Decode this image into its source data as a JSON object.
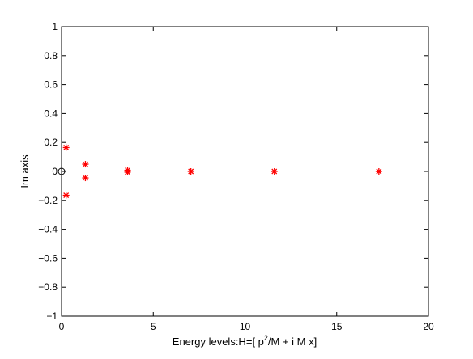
{
  "chart_data": {
    "type": "scatter",
    "title": "",
    "xlabel_parts": [
      "Energy levels:H=[ p",
      "2",
      "/M + i M x]"
    ],
    "ylabel": "Im axis",
    "xlim": [
      0,
      20
    ],
    "ylim": [
      -1,
      1
    ],
    "xticks": [
      0,
      5,
      10,
      15,
      20
    ],
    "xtick_labels": [
      "0",
      "5",
      "10",
      "15",
      "20"
    ],
    "yticks": [
      1,
      0.8,
      0.6,
      0.4,
      0.2,
      0,
      -0.2,
      -0.4,
      -0.6,
      -0.8,
      -1
    ],
    "ytick_labels": [
      "1",
      "0.8",
      "0.6",
      "0.4",
      "0.2",
      "0",
      "−0.2",
      "−0.4",
      "−0.6",
      "−0.8",
      "−1"
    ],
    "grid": false,
    "series": [
      {
        "marker": "asterisk",
        "color": "#ff0000",
        "points": [
          {
            "x": 0.25,
            "y": 0.165
          },
          {
            "x": 0.25,
            "y": -0.165
          },
          {
            "x": 1.3,
            "y": 0.05
          },
          {
            "x": 1.3,
            "y": -0.045
          },
          {
            "x": 3.6,
            "y": 0.008
          },
          {
            "x": 3.6,
            "y": -0.005
          },
          {
            "x": 7.05,
            "y": 0.0
          },
          {
            "x": 11.6,
            "y": 0.0
          },
          {
            "x": 17.3,
            "y": 0.0
          }
        ]
      },
      {
        "marker": "circle",
        "color": "#000000",
        "points": [
          {
            "x": 0.0,
            "y": 0.0
          }
        ]
      }
    ]
  }
}
